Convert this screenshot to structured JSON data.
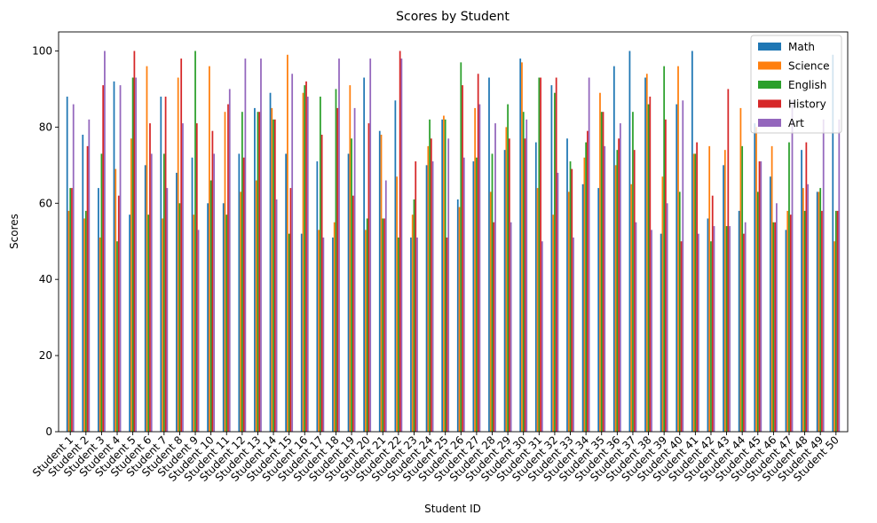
{
  "chart_data": {
    "type": "bar",
    "title": "Scores by Student",
    "xlabel": "Student ID",
    "ylabel": "Scores",
    "ylim": [
      0,
      105
    ],
    "yticks": [
      0,
      20,
      40,
      60,
      80,
      100
    ],
    "legend_position": "top-right",
    "grid": false,
    "categories": [
      "Student 1",
      "Student 2",
      "Student 3",
      "Student 4",
      "Student 5",
      "Student 6",
      "Student 7",
      "Student 8",
      "Student 9",
      "Student 10",
      "Student 11",
      "Student 12",
      "Student 13",
      "Student 14",
      "Student 15",
      "Student 16",
      "Student 17",
      "Student 18",
      "Student 19",
      "Student 20",
      "Student 21",
      "Student 22",
      "Student 23",
      "Student 24",
      "Student 25",
      "Student 26",
      "Student 27",
      "Student 28",
      "Student 29",
      "Student 30",
      "Student 31",
      "Student 32",
      "Student 33",
      "Student 34",
      "Student 35",
      "Student 36",
      "Student 37",
      "Student 38",
      "Student 39",
      "Student 40",
      "Student 41",
      "Student 42",
      "Student 43",
      "Student 44",
      "Student 45",
      "Student 46",
      "Student 47",
      "Student 48",
      "Student 49",
      "Student 50"
    ],
    "series": [
      {
        "name": "Math",
        "color": "#1f77b4",
        "values": [
          88,
          78,
          64,
          92,
          57,
          70,
          88,
          68,
          72,
          60,
          60,
          73,
          85,
          89,
          73,
          52,
          71,
          51,
          73,
          93,
          79,
          87,
          51,
          70,
          82,
          61,
          71,
          93,
          74,
          98,
          76,
          91,
          77,
          65,
          64,
          96,
          100,
          93,
          52,
          86,
          100,
          56,
          70,
          58,
          81,
          67,
          53,
          74,
          63,
          99
        ]
      },
      {
        "name": "Science",
        "color": "#ff7f0e",
        "values": [
          58,
          56,
          51,
          69,
          77,
          96,
          56,
          93,
          57,
          96,
          84,
          63,
          66,
          85,
          99,
          89,
          53,
          55,
          91,
          53,
          78,
          67,
          57,
          75,
          83,
          59,
          85,
          63,
          80,
          97,
          64,
          57,
          63,
          72,
          89,
          70,
          65,
          94,
          67,
          96,
          73,
          75,
          74,
          85,
          80,
          75,
          58,
          64,
          63,
          50
        ]
      },
      {
        "name": "English",
        "color": "#2ca02c",
        "values": [
          64,
          58,
          73,
          50,
          93,
          57,
          73,
          60,
          100,
          66,
          57,
          84,
          84,
          82,
          52,
          91,
          88,
          90,
          77,
          56,
          56,
          51,
          61,
          82,
          82,
          97,
          72,
          73,
          86,
          84,
          93,
          89,
          71,
          76,
          84,
          74,
          84,
          86,
          96,
          63,
          73,
          50,
          54,
          75,
          63,
          55,
          76,
          58,
          64,
          58
        ]
      },
      {
        "name": "History",
        "color": "#d62728",
        "values": [
          64,
          75,
          91,
          62,
          100,
          81,
          88,
          98,
          81,
          79,
          86,
          72,
          84,
          82,
          64,
          92,
          78,
          85,
          62,
          81,
          56,
          100,
          71,
          77,
          51,
          91,
          94,
          55,
          77,
          77,
          93,
          93,
          69,
          79,
          84,
          77,
          74,
          88,
          82,
          50,
          76,
          62,
          90,
          52,
          71,
          55,
          57,
          76,
          58,
          58
        ]
      },
      {
        "name": "Art",
        "color": "#9467bd",
        "values": [
          86,
          82,
          100,
          91,
          93,
          73,
          64,
          81,
          53,
          73,
          90,
          98,
          98,
          61,
          94,
          88,
          51,
          98,
          85,
          98,
          66,
          98,
          51,
          71,
          77,
          72,
          86,
          81,
          55,
          82,
          50,
          68,
          51,
          93,
          75,
          81,
          55,
          53,
          60,
          87,
          52,
          54,
          54,
          55,
          71,
          60,
          87,
          65,
          82,
          82
        ]
      }
    ]
  }
}
